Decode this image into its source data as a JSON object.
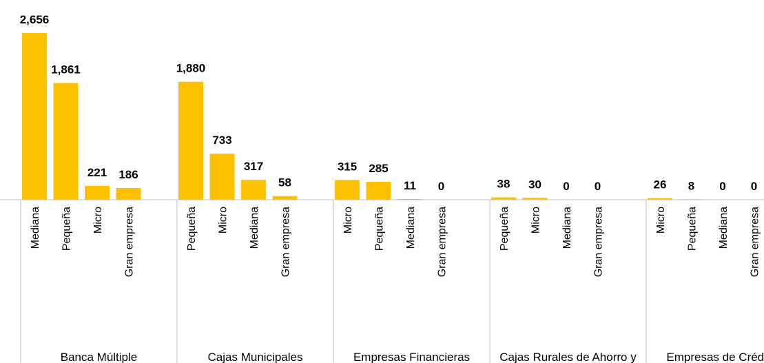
{
  "chart_data": {
    "type": "bar",
    "color": "#ffc000",
    "groups": [
      {
        "name": "Banca Múltiple",
        "categories": [
          "Mediana",
          "Pequeña",
          "Micro",
          "Gran empresa"
        ],
        "values": [
          2656,
          1861,
          221,
          186
        ],
        "value_labels": [
          "2,656",
          "1,861",
          "221",
          "186"
        ]
      },
      {
        "name": "Cajas Municipales",
        "categories": [
          "Pequeña",
          "Micro",
          "Mediana",
          "Gran empresa"
        ],
        "values": [
          1880,
          733,
          317,
          58
        ],
        "value_labels": [
          "1,880",
          "733",
          "317",
          "58"
        ]
      },
      {
        "name": "Empresas Financieras",
        "categories": [
          "Micro",
          "Pequeña",
          "Mediana",
          "Gran empresa"
        ],
        "values": [
          315,
          285,
          11,
          0
        ],
        "value_labels": [
          "315",
          "285",
          "11",
          "0"
        ]
      },
      {
        "name": "Cajas Rurales de Ahorro y Crédito",
        "categories": [
          "Pequeña",
          "Micro",
          "Mediana",
          "Gran empresa"
        ],
        "values": [
          38,
          30,
          0,
          0
        ],
        "value_labels": [
          "38",
          "30",
          "0",
          "0"
        ]
      },
      {
        "name": "Empresas de Créditos",
        "categories": [
          "Micro",
          "Pequeña",
          "Mediana",
          "Gran empresa"
        ],
        "values": [
          26,
          8,
          0,
          0
        ],
        "value_labels": [
          "26",
          "8",
          "0",
          "0"
        ]
      }
    ]
  }
}
